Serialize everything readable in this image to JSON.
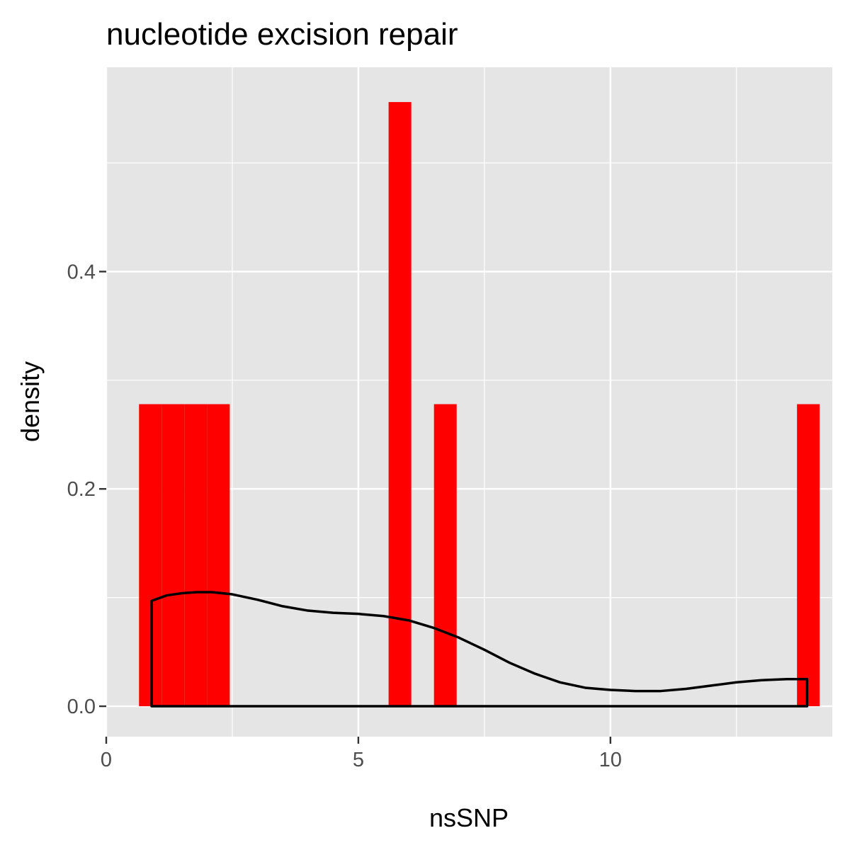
{
  "chart_data": {
    "type": "histogram",
    "title": "nucleotide excision repair",
    "xlabel": "nsSNP",
    "ylabel": "density",
    "xlim": [
      0,
      14.4
    ],
    "ylim": [
      -0.028,
      0.588
    ],
    "x_ticks": [
      0,
      5,
      10
    ],
    "x_tick_labels": [
      "0",
      "5",
      "10"
    ],
    "y_ticks": [
      0.0,
      0.2,
      0.4
    ],
    "y_tick_labels": [
      "0.0",
      "0.2",
      "0.4"
    ],
    "x_minor_gridlines": [
      2.5,
      7.5,
      12.5
    ],
    "y_minor_gridlines": [
      0.1,
      0.3,
      0.5
    ],
    "bar_color": "#ff0000",
    "panel_background": "#e5e5e5",
    "grid_color": "#ffffff",
    "bins": [
      {
        "x0": 0.65,
        "x1": 1.1,
        "density": 0.278
      },
      {
        "x0": 1.1,
        "x1": 1.55,
        "density": 0.278
      },
      {
        "x0": 1.55,
        "x1": 2.0,
        "density": 0.278
      },
      {
        "x0": 2.0,
        "x1": 2.45,
        "density": 0.278
      },
      {
        "x0": 5.6,
        "x1": 6.05,
        "density": 0.556
      },
      {
        "x0": 6.5,
        "x1": 6.95,
        "density": 0.278
      },
      {
        "x0": 13.7,
        "x1": 14.15,
        "density": 0.278
      }
    ],
    "density_curve": {
      "color": "#000000",
      "x": [
        0.9,
        1.2,
        1.5,
        1.8,
        2.1,
        2.5,
        3.0,
        3.5,
        4.0,
        4.5,
        5.0,
        5.5,
        6.0,
        6.5,
        7.0,
        7.5,
        8.0,
        8.5,
        9.0,
        9.5,
        10.0,
        10.5,
        11.0,
        11.5,
        12.0,
        12.5,
        13.0,
        13.5,
        13.9
      ],
      "y": [
        0.097,
        0.102,
        0.104,
        0.105,
        0.105,
        0.103,
        0.098,
        0.092,
        0.088,
        0.086,
        0.085,
        0.083,
        0.079,
        0.072,
        0.063,
        0.052,
        0.04,
        0.03,
        0.022,
        0.017,
        0.015,
        0.014,
        0.014,
        0.016,
        0.019,
        0.022,
        0.024,
        0.025,
        0.025
      ]
    }
  }
}
